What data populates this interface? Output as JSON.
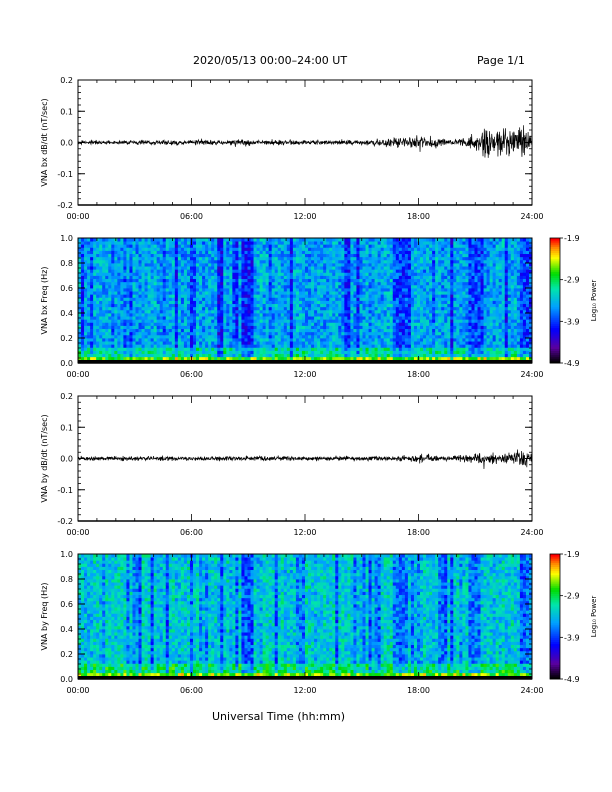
{
  "header": {
    "title": "2020/05/13  00:00–24:00 UT",
    "page": "Page 1/1"
  },
  "chart_data": [
    {
      "type": "line",
      "id": "bx-waveform",
      "title": "",
      "xlabel": "",
      "ylabel": "VNA bx dB/dt (nT/sec)",
      "xlim": [
        "00:00",
        "24:00"
      ],
      "x_ticks": [
        "00:00",
        "06:00",
        "12:00",
        "18:00",
        "24:00"
      ],
      "ylim": [
        -0.2,
        0.2
      ],
      "y_ticks": [
        "-0.2",
        "-0.1",
        "0.0",
        "0.1",
        "0.2"
      ],
      "series": [
        {
          "description_of_trace": "noise",
          "x_hours": [
            0,
            3,
            6,
            8.5,
            9,
            12,
            15,
            17.3,
            18,
            18.3,
            20,
            21,
            21.3,
            21.6,
            22,
            22.3,
            23,
            23.5,
            24
          ],
          "amplitude": [
            0.008,
            0.008,
            0.009,
            0.012,
            0.011,
            0.009,
            0.009,
            0.02,
            0.035,
            0.02,
            0.012,
            0.03,
            0.05,
            0.065,
            0.04,
            0.05,
            0.055,
            0.06,
            0.03
          ]
        }
      ]
    },
    {
      "type": "heatmap",
      "id": "bx-spectrogram",
      "ylabel": "VNA bx Freq (Hz)",
      "xlim": [
        "00:00",
        "24:00"
      ],
      "x_ticks": [
        "00:00",
        "06:00",
        "12:00",
        "18:00",
        "24:00"
      ],
      "ylim": [
        0.0,
        1.0
      ],
      "y_ticks": [
        "0.0",
        "0.2",
        "0.4",
        "0.6",
        "0.8",
        "1.0"
      ],
      "colorbar": {
        "label": "Log₁₀ Power",
        "min": -4.9,
        "max": -1.9,
        "ticks": [
          "-1.9",
          "-2.9",
          "-3.9",
          "-4.9"
        ]
      }
    },
    {
      "type": "line",
      "id": "by-waveform",
      "ylabel": "VNA by dB/dt (nT/sec)",
      "xlim": [
        "00:00",
        "24:00"
      ],
      "x_ticks": [
        "00:00",
        "06:00",
        "12:00",
        "18:00",
        "24:00"
      ],
      "ylim": [
        -0.2,
        0.2
      ],
      "y_ticks": [
        "-0.2",
        "-0.1",
        "0.0",
        "0.1",
        "0.2"
      ],
      "series": [
        {
          "x_hours": [
            0,
            3,
            6,
            9,
            12,
            15,
            17.5,
            18,
            18.5,
            20,
            21,
            21.3,
            21.7,
            22.5,
            23,
            23.5,
            24
          ],
          "amplitude": [
            0.008,
            0.008,
            0.008,
            0.009,
            0.008,
            0.008,
            0.012,
            0.02,
            0.013,
            0.01,
            0.018,
            0.03,
            0.02,
            0.02,
            0.025,
            0.03,
            0.02
          ]
        }
      ]
    },
    {
      "type": "heatmap",
      "id": "by-spectrogram",
      "ylabel": "VNA by Freq (Hz)",
      "xlim": [
        "00:00",
        "24:00"
      ],
      "x_ticks": [
        "00:00",
        "06:00",
        "12:00",
        "18:00",
        "24:00"
      ],
      "ylim": [
        0.0,
        1.0
      ],
      "y_ticks": [
        "0.0",
        "0.2",
        "0.4",
        "0.6",
        "0.8",
        "1.0"
      ],
      "colorbar": {
        "label": "Log₁₀ Power",
        "min": -4.9,
        "max": -1.9,
        "ticks": [
          "-1.9",
          "-2.9",
          "-3.9",
          "-4.9"
        ]
      }
    }
  ],
  "footer": {
    "xlabel": "Universal Time (hh:mm)"
  }
}
